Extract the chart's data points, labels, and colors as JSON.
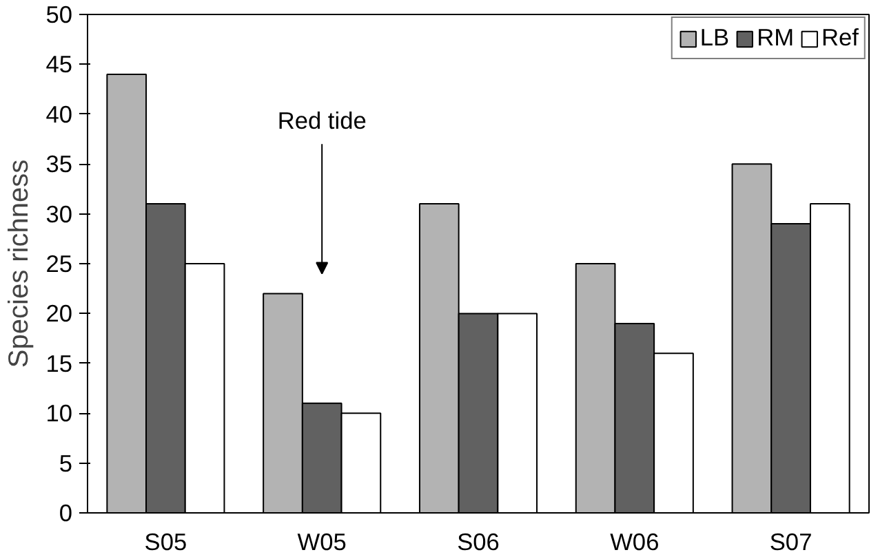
{
  "chart_data": {
    "type": "bar",
    "ylabel": "Species richness",
    "categories": [
      "S05",
      "W05",
      "S06",
      "W06",
      "S07"
    ],
    "series": [
      {
        "name": "LB",
        "color": "#b3b3b3",
        "values": [
          44,
          22,
          31,
          25,
          35
        ]
      },
      {
        "name": "RM",
        "color": "#616161",
        "values": [
          31,
          11,
          20,
          19,
          29
        ]
      },
      {
        "name": "Ref",
        "color": "#ffffff",
        "values": [
          25,
          10,
          20,
          16,
          31
        ]
      }
    ],
    "ylim": [
      0,
      50
    ],
    "yticks": [
      0,
      5,
      10,
      15,
      20,
      25,
      30,
      35,
      40,
      45,
      50
    ],
    "grid": false,
    "legend": "top right",
    "annotations": [
      "Red tide"
    ]
  }
}
